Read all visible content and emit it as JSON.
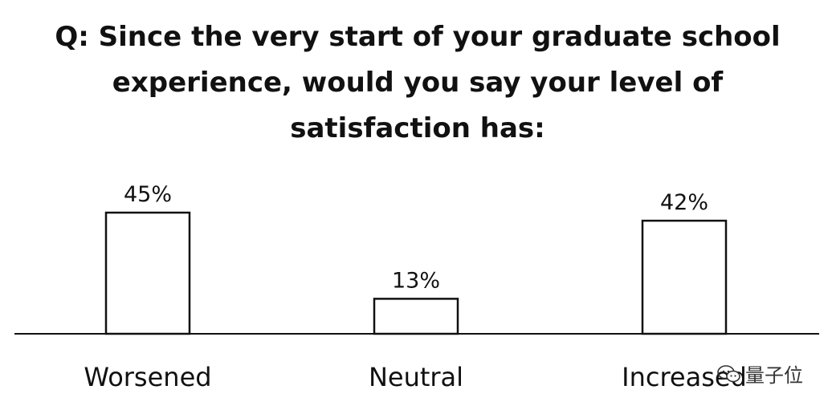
{
  "chart_data": {
    "type": "bar",
    "title": "Q: Since the very start of your graduate school experience, would you say your level of satisfaction has:",
    "categories": [
      "Worsened",
      "Neutral",
      "Increased"
    ],
    "values": [
      45,
      13,
      42
    ],
    "data_labels": [
      "45%",
      "13%",
      "42%"
    ],
    "ylim": [
      0,
      50
    ],
    "grid": false,
    "legend": "none",
    "bar_fill": "#ffffff",
    "bar_stroke": "#111111"
  },
  "watermark": {
    "icon": "wechat-icon",
    "text": "量子位"
  }
}
